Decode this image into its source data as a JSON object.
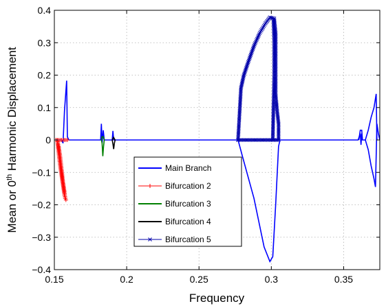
{
  "chart_data": {
    "type": "line",
    "title": "",
    "xlabel": "Frequency",
    "ylabel_prefix": "Mean or 0",
    "ylabel_sup": "th",
    "ylabel_suffix": " Harmonic Displacement",
    "xlim": [
      0.15,
      0.375
    ],
    "ylim": [
      -0.4,
      0.4
    ],
    "x_ticks": [
      0.15,
      0.2,
      0.25,
      0.3,
      0.35
    ],
    "x_tick_labels": [
      "0.15",
      "0.2",
      "0.25",
      "0.3",
      "0.35"
    ],
    "y_ticks": [
      -0.4,
      -0.3,
      -0.2,
      -0.1,
      0,
      0.1,
      0.2,
      0.3,
      0.4
    ],
    "y_tick_labels": [
      "−0.4",
      "−0.3",
      "−0.2",
      "−0.1",
      "0",
      "0.1",
      "0.2",
      "0.3",
      "0.4"
    ],
    "grid": true,
    "legend_position": "lower-center",
    "series": [
      {
        "name": "Main Branch",
        "color": "#0000ff",
        "marker": "none",
        "segments": [
          [
            [
              0.151,
              0.0
            ],
            [
              0.155,
              0.0
            ],
            [
              0.156,
              -0.01
            ],
            [
              0.157,
              0.09
            ],
            [
              0.1585,
              0.183
            ],
            [
              0.159,
              0.01
            ],
            [
              0.16,
              0.0
            ],
            [
              0.182,
              0.0
            ],
            [
              0.1825,
              0.05
            ],
            [
              0.183,
              -0.01
            ],
            [
              0.1838,
              0.03
            ],
            [
              0.1845,
              0.0
            ],
            [
              0.19,
              0.0
            ],
            [
              0.1905,
              0.028
            ],
            [
              0.191,
              0.0
            ],
            [
              0.277,
              0.0
            ],
            [
              0.28,
              -0.05
            ],
            [
              0.288,
              -0.18
            ],
            [
              0.295,
              -0.33
            ],
            [
              0.299,
              -0.375
            ],
            [
              0.301,
              -0.36
            ],
            [
              0.303,
              -0.2
            ],
            [
              0.305,
              -0.02
            ],
            [
              0.306,
              0.0
            ],
            [
              0.36,
              0.0
            ],
            [
              0.3615,
              0.02
            ],
            [
              0.362,
              -0.015
            ],
            [
              0.3625,
              0.02
            ],
            [
              0.363,
              0.0
            ],
            [
              0.365,
              0.0
            ],
            [
              0.367,
              -0.03
            ],
            [
              0.369,
              -0.08
            ],
            [
              0.371,
              -0.12
            ],
            [
              0.372,
              -0.145
            ],
            [
              0.373,
              0.05
            ],
            [
              0.374,
              0.02
            ],
            [
              0.375,
              0.0
            ]
          ],
          [
            [
              0.3605,
              0.0
            ],
            [
              0.3615,
              0.03
            ],
            [
              0.3625,
              0.03
            ],
            [
              0.363,
              0.0
            ]
          ],
          [
            [
              0.365,
              0.0
            ],
            [
              0.367,
              0.03
            ],
            [
              0.369,
              0.07
            ],
            [
              0.371,
              0.1
            ],
            [
              0.3725,
              0.142
            ],
            [
              0.373,
              0.0
            ]
          ]
        ]
      },
      {
        "name": "Bifurcation 2",
        "color": "#ff0000",
        "marker": "plus",
        "segments": [
          [
            [
              0.152,
              0.0
            ],
            [
              0.153,
              -0.04
            ],
            [
              0.154,
              -0.08
            ],
            [
              0.155,
              -0.11
            ],
            [
              0.156,
              -0.14
            ],
            [
              0.157,
              -0.17
            ],
            [
              0.158,
              -0.185
            ]
          ],
          [
            [
              0.152,
              0.0
            ],
            [
              0.153,
              -0.02
            ],
            [
              0.154,
              -0.05
            ],
            [
              0.155,
              -0.09
            ],
            [
              0.156,
              -0.13
            ],
            [
              0.157,
              -0.16
            ],
            [
              0.1575,
              -0.18
            ]
          ],
          [
            [
              0.151,
              0.0
            ],
            [
              0.152,
              0.0
            ],
            [
              0.153,
              0.0
            ],
            [
              0.154,
              0.0
            ],
            [
              0.155,
              0.0
            ],
            [
              0.156,
              0.0
            ],
            [
              0.157,
              0.0
            ],
            [
              0.158,
              0.0
            ],
            [
              0.159,
              0.0
            ]
          ]
        ]
      },
      {
        "name": "Bifurcation 3",
        "color": "#008000",
        "marker": "none",
        "segments": [
          [
            [
              0.1825,
              0.0
            ],
            [
              0.183,
              -0.01
            ],
            [
              0.1835,
              -0.05
            ],
            [
              0.184,
              -0.02
            ],
            [
              0.1845,
              0.0
            ]
          ],
          [
            [
              0.1825,
              0.0
            ],
            [
              0.183,
              0.01
            ],
            [
              0.1838,
              0.01
            ],
            [
              0.1845,
              0.0
            ]
          ]
        ]
      },
      {
        "name": "Bifurcation 4",
        "color": "#000000",
        "marker": "none",
        "segments": [
          [
            [
              0.19,
              0.0
            ],
            [
              0.1905,
              -0.012
            ],
            [
              0.191,
              -0.028
            ],
            [
              0.1915,
              -0.01
            ],
            [
              0.192,
              0.0
            ]
          ],
          [
            [
              0.19,
              0.0
            ],
            [
              0.191,
              0.008
            ],
            [
              0.192,
              0.0
            ]
          ]
        ]
      },
      {
        "name": "Bifurcation 5",
        "color": "#0000aa",
        "marker": "x",
        "segments": [
          [
            [
              0.277,
              0.0
            ],
            [
              0.278,
              0.08
            ],
            [
              0.279,
              0.16
            ],
            [
              0.281,
              0.2
            ],
            [
              0.284,
              0.24
            ],
            [
              0.288,
              0.29
            ],
            [
              0.292,
              0.33
            ],
            [
              0.296,
              0.36
            ],
            [
              0.299,
              0.378
            ],
            [
              0.302,
              0.375
            ],
            [
              0.303,
              0.33
            ],
            [
              0.303,
              0.2
            ],
            [
              0.303,
              0.14
            ],
            [
              0.304,
              0.09
            ],
            [
              0.305,
              0.05
            ],
            [
              0.305,
              0.0
            ]
          ],
          [
            [
              0.277,
              0.0
            ],
            [
              0.305,
              0.0
            ]
          ],
          [
            [
              0.301,
              0.0
            ],
            [
              0.3015,
              0.1
            ],
            [
              0.302,
              0.2
            ],
            [
              0.302,
              0.3
            ],
            [
              0.3015,
              0.37
            ]
          ]
        ]
      }
    ]
  }
}
